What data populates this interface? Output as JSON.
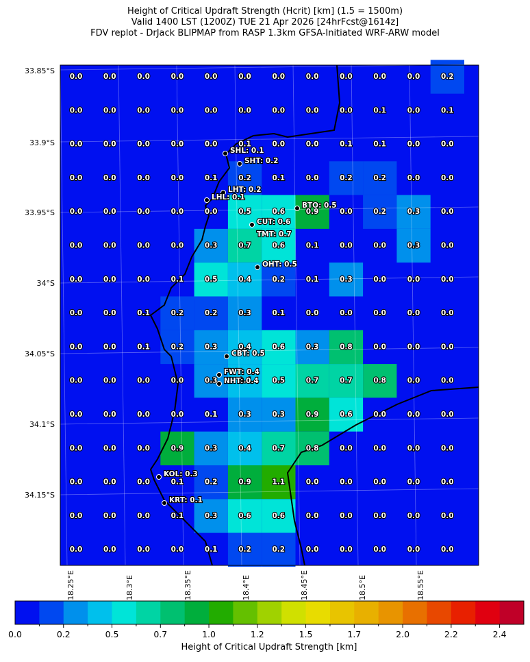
{
  "header": {
    "title": "Height of Critical Updraft Strength (Hcrit) [km] (1.5 = 1500m)",
    "subtitle": "Valid 1400 LST (1200Z) TUE 21 Apr 2026 [24hrFcst@1614z]",
    "source": "FDV replot - DrJack BLIPMAP from RASP 1.3km GFSA-Initiated WRF-ARW model"
  },
  "map": {
    "lat_labels": [
      "33.85°S",
      "33.9°S",
      "33.95°S",
      "34°S",
      "34.05°S",
      "34.1°S",
      "34.15°S"
    ],
    "lon_labels": [
      "18.25°E",
      "18.3°E",
      "18.35°E",
      "18.4°E",
      "18.45°E",
      "18.5°E",
      "18.55°E"
    ],
    "grid_values": [
      [
        "0.0",
        "0.0",
        "0.0",
        "0.0",
        "0.0",
        "0.0",
        "0.0",
        "0.0",
        "0.0",
        "0.0",
        "0.0",
        "0.2"
      ],
      [
        "0.0",
        "0.0",
        "0.0",
        "0.0",
        "0.0",
        "0.0",
        "0.0",
        "0.0",
        "0.0",
        "0.1",
        "0.0",
        "0.1"
      ],
      [
        "0.0",
        "0.0",
        "0.0",
        "0.0",
        "0.0",
        "0.1",
        "0.0",
        "0.0",
        "0.1",
        "0.1",
        "0.0",
        "0.0"
      ],
      [
        "0.0",
        "0.0",
        "0.0",
        "0.0",
        "0.1",
        "0.2",
        "0.1",
        "0.0",
        "0.2",
        "0.2",
        "0.0",
        "0.0"
      ],
      [
        "0.0",
        "0.0",
        "0.0",
        "0.0",
        "0.0",
        "0.5",
        "0.6",
        "0.9",
        "0.0",
        "0.2",
        "0.3",
        "0.0"
      ],
      [
        "0.0",
        "0.0",
        "0.0",
        "0.0",
        "0.3",
        "0.7",
        "0.6",
        "0.1",
        "0.0",
        "0.0",
        "0.3",
        "0.0"
      ],
      [
        "0.0",
        "0.0",
        "0.0",
        "0.1",
        "0.5",
        "0.4",
        "0.2",
        "0.1",
        "0.3",
        "0.0",
        "0.0",
        "0.0"
      ],
      [
        "0.0",
        "0.0",
        "0.1",
        "0.2",
        "0.2",
        "0.3",
        "0.1",
        "0.0",
        "0.0",
        "0.0",
        "0.0",
        "0.0"
      ],
      [
        "0.0",
        "0.0",
        "0.1",
        "0.2",
        "0.3",
        "0.4",
        "0.6",
        "0.3",
        "0.8",
        "0.0",
        "0.0",
        "0.0"
      ],
      [
        "0.0",
        "0.0",
        "0.0",
        "0.0",
        "0.3",
        "0.4",
        "0.5",
        "0.7",
        "0.7",
        "0.8",
        "0.0",
        "0.0"
      ],
      [
        "0.0",
        "0.0",
        "0.0",
        "0.0",
        "0.1",
        "0.3",
        "0.3",
        "0.9",
        "0.6",
        "0.0",
        "0.0",
        "0.0"
      ],
      [
        "0.0",
        "0.0",
        "0.0",
        "0.9",
        "0.3",
        "0.4",
        "0.7",
        "0.8",
        "0.0",
        "0.0",
        "0.0",
        "0.0"
      ],
      [
        "0.0",
        "0.0",
        "0.0",
        "0.1",
        "0.2",
        "0.9",
        "1.1",
        "0.0",
        "0.0",
        "0.0",
        "0.0",
        "0.0"
      ],
      [
        "0.0",
        "0.0",
        "0.0",
        "0.1",
        "0.3",
        "0.6",
        "0.6",
        "0.0",
        "0.0",
        "0.0",
        "0.0",
        "0.0"
      ],
      [
        "0.0",
        "0.0",
        "0.0",
        "0.0",
        "0.1",
        "0.2",
        "0.2",
        "0.0",
        "0.0",
        "0.0",
        "0.0",
        "0.0"
      ]
    ],
    "stations": [
      {
        "label": "SHL: 0.1"
      },
      {
        "label": "SHT: 0.2"
      },
      {
        "label": "LHT: 0.2"
      },
      {
        "label": "LHL: 0.1"
      },
      {
        "label": "BTO: 0.5"
      },
      {
        "label": "CUT: 0.6"
      },
      {
        "label": "TMT: 0.7"
      },
      {
        "label": "OHT: 0.5"
      },
      {
        "label": "CBT: 0.5"
      },
      {
        "label": "FWT: 0.4"
      },
      {
        "label": "NHT: 0.4"
      },
      {
        "label": "KOL: 0.3"
      },
      {
        "label": "KRT: 0.1"
      }
    ]
  },
  "colorbar": {
    "label": "Height of Critical Updraft Strength [km]",
    "tick_labels": [
      "0.0",
      "0.2",
      "0.5",
      "0.7",
      "1.0",
      "1.2",
      "1.5",
      "1.7",
      "2.0",
      "2.2",
      "2.4"
    ],
    "colors": [
      "#0010f0",
      "#0048f0",
      "#0090ec",
      "#00c0ec",
      "#00e4d8",
      "#00d4a4",
      "#00c070",
      "#00ae3c",
      "#22ac00",
      "#64c000",
      "#a0d200",
      "#d0e000",
      "#e8dc00",
      "#e8c400",
      "#e8b000",
      "#e89400",
      "#e87000",
      "#e84800",
      "#e82000",
      "#e00010",
      "#c00028"
    ]
  }
}
